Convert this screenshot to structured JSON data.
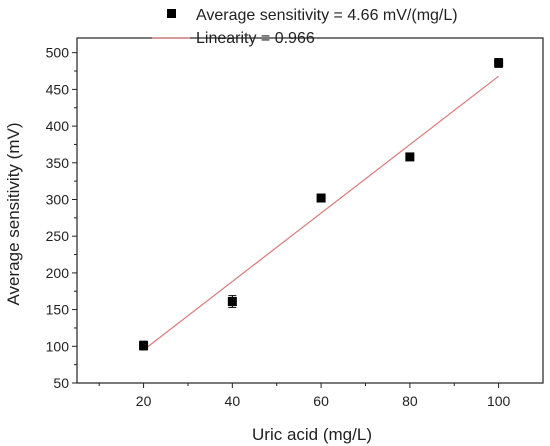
{
  "chart_data": {
    "type": "scatter",
    "xlabel": "Uric acid (mg/L)",
    "ylabel": "Average sensitivity (mV)",
    "xlim": [
      5,
      110
    ],
    "ylim": [
      50,
      520
    ],
    "xticks": [
      20,
      40,
      60,
      80,
      100
    ],
    "yticks": [
      50,
      100,
      150,
      200,
      250,
      300,
      350,
      400,
      450,
      500
    ],
    "legend_position": "top",
    "series": [
      {
        "name": "Average sensitivity = 4.66 mV/(mg/L)",
        "kind": "points",
        "marker": "square",
        "color": "#000000",
        "x": [
          20,
          40,
          60,
          80,
          100
        ],
        "y": [
          101,
          161,
          302,
          358,
          486
        ],
        "error": [
          6,
          8,
          3,
          3,
          6
        ]
      },
      {
        "name": "Linearity = 0.966",
        "kind": "line",
        "color": "#d87a7a",
        "x": [
          20,
          100
        ],
        "y": [
          95,
          468
        ]
      }
    ]
  }
}
